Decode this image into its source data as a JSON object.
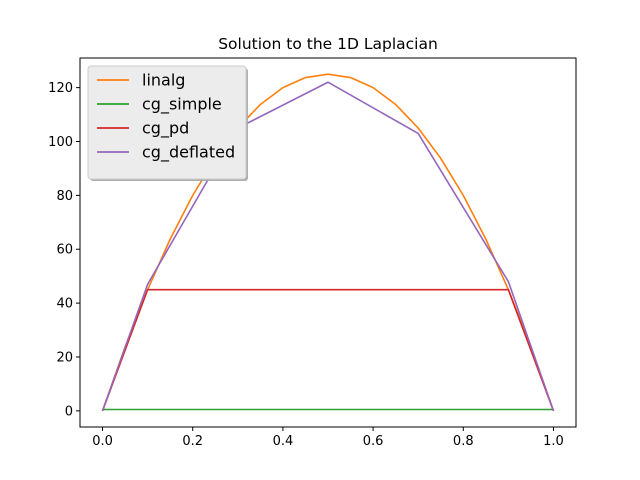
{
  "chart_data": {
    "type": "line",
    "title": "Solution to the 1D Laplacian",
    "xlabel": "",
    "ylabel": "",
    "xlim": [
      -0.05,
      1.05
    ],
    "ylim": [
      -6,
      131
    ],
    "x_ticks": [
      0.0,
      0.2,
      0.4,
      0.6,
      0.8,
      1.0
    ],
    "x_tick_labels": [
      "0.0",
      "0.2",
      "0.4",
      "0.6",
      "0.8",
      "1.0"
    ],
    "y_ticks": [
      0,
      20,
      40,
      60,
      80,
      100,
      120
    ],
    "y_tick_labels": [
      "0",
      "20",
      "40",
      "60",
      "80",
      "100",
      "120"
    ],
    "grid": false,
    "legend_position": "upper-left",
    "series": [
      {
        "name": "linalg",
        "color": "#ff7f0e",
        "x": [
          0,
          0.05,
          0.1,
          0.15,
          0.2,
          0.25,
          0.3,
          0.35,
          0.4,
          0.45,
          0.5,
          0.55,
          0.6,
          0.65,
          0.7,
          0.75,
          0.8,
          0.85,
          0.9,
          0.95,
          1.0
        ],
        "y": [
          0,
          23.75,
          45,
          63.75,
          80,
          93.75,
          105,
          113.75,
          120,
          123.75,
          125,
          123.75,
          120,
          113.75,
          105,
          93.75,
          80,
          63.75,
          45,
          23.75,
          0
        ]
      },
      {
        "name": "cg_simple",
        "color": "#2ca02c",
        "x": [
          0,
          1.0
        ],
        "y": [
          0.5,
          0.5
        ]
      },
      {
        "name": "cg_pd",
        "color": "#d62728",
        "x": [
          0,
          0.1,
          0.9,
          1.0
        ],
        "y": [
          0,
          45,
          45,
          0
        ]
      },
      {
        "name": "cg_deflated",
        "color": "#9467bd",
        "x": [
          0,
          0.1,
          0.3,
          0.5,
          0.7,
          0.9,
          1.0
        ],
        "y": [
          0,
          47,
          105,
          122,
          103,
          48,
          0
        ]
      }
    ]
  }
}
